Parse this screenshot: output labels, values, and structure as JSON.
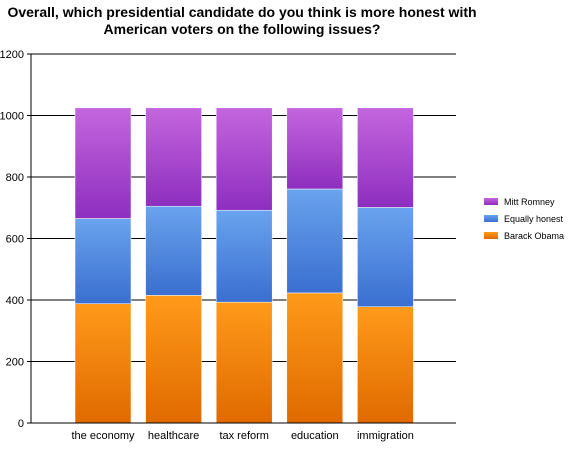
{
  "chart_data": {
    "type": "bar",
    "stacked": true,
    "title_lines": [
      "Overall, which presidential candidate do you think is more honest with",
      "American voters on the following issues?"
    ],
    "categories": [
      "the economy",
      "healthcare",
      "tax reform",
      "education",
      "immigration"
    ],
    "series": [
      {
        "name": "Barack Obama",
        "values": [
          388,
          415,
          393,
          423,
          378
        ]
      },
      {
        "name": "Equally honest",
        "values": [
          277,
          290,
          299,
          338,
          323
        ]
      },
      {
        "name": "Mitt Romney",
        "values": [
          360,
          320,
          333,
          264,
          324
        ]
      }
    ],
    "ylim": [
      0,
      1200
    ],
    "yticks": [
      0,
      200,
      400,
      600,
      800,
      1000,
      1200
    ],
    "grid": true,
    "legend_position": "right",
    "colors": {
      "Barack Obama": [
        "#ff9a1a",
        "#e06a00"
      ],
      "Equally honest": [
        "#6aa3ee",
        "#3a6fd0"
      ],
      "Mitt Romney": [
        "#c466de",
        "#8e2ebf"
      ]
    }
  }
}
